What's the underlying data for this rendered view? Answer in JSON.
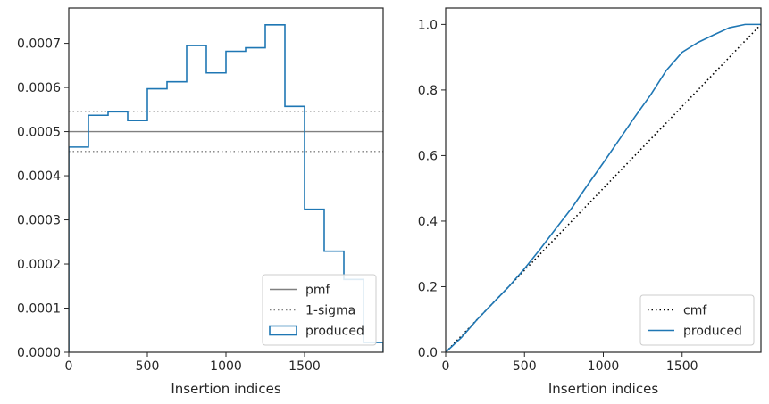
{
  "chart_data": [
    {
      "type": "step-histogram",
      "xlabel": "Insertion indices",
      "ylabel": "",
      "xlim": [
        0,
        2000
      ],
      "ylim": [
        0,
        0.00078
      ],
      "xticks": [
        0,
        500,
        1000,
        1500
      ],
      "yticks": [
        0,
        0.0001,
        0.0002,
        0.0003,
        0.0004,
        0.0005,
        0.0006,
        0.0007
      ],
      "xtick_labels": [
        "0",
        "500",
        "1000",
        "1500"
      ],
      "ytick_labels": [
        "0.0000",
        "0.0001",
        "0.0002",
        "0.0003",
        "0.0004",
        "0.0005",
        "0.0006",
        "0.0007"
      ],
      "bin_edges": [
        0,
        125,
        250,
        375,
        500,
        625,
        750,
        875,
        1000,
        1125,
        1250,
        1375,
        1500,
        1625,
        1750,
        1875,
        2000
      ],
      "series": [
        {
          "name": "produced",
          "color": "#1f77b4",
          "style": "step",
          "values": [
            0.000465,
            0.000537,
            0.000545,
            0.000525,
            0.000597,
            0.000613,
            0.000695,
            0.000633,
            0.000682,
            0.00069,
            0.000742,
            0.000557,
            0.000324,
            0.000229,
            0.000165,
            2.2e-05
          ]
        }
      ],
      "hlines": [
        {
          "name": "pmf",
          "y": 0.0005,
          "color": "#808080",
          "style": "solid"
        },
        {
          "name": "1-sigma",
          "y": 0.000546,
          "color": "#808080",
          "style": "dotted"
        },
        {
          "name": "1-sigma-lower",
          "y": 0.000455,
          "color": "#808080",
          "style": "dotted"
        }
      ],
      "legend": {
        "position": "lower-right",
        "entries": [
          "pmf",
          "1-sigma",
          "produced"
        ]
      },
      "grid": false
    },
    {
      "type": "line",
      "xlabel": "Insertion indices",
      "ylabel": "",
      "xlim": [
        0,
        2000
      ],
      "ylim": [
        0,
        1.05
      ],
      "xticks": [
        0,
        500,
        1000,
        1500
      ],
      "yticks": [
        0,
        0.2,
        0.4,
        0.6,
        0.8,
        1.0
      ],
      "xtick_labels": [
        "0",
        "500",
        "1000",
        "1500"
      ],
      "ytick_labels": [
        "0.0",
        "0.2",
        "0.4",
        "0.6",
        "0.8",
        "1.0"
      ],
      "series": [
        {
          "name": "cmf",
          "color": "#000000",
          "style": "dotted",
          "x": [
            0,
            2000
          ],
          "y": [
            0,
            1.0
          ]
        },
        {
          "name": "produced",
          "color": "#1f77b4",
          "style": "solid",
          "x": [
            0,
            100,
            200,
            300,
            400,
            500,
            600,
            700,
            800,
            900,
            1000,
            1100,
            1200,
            1300,
            1400,
            1500,
            1600,
            1700,
            1800,
            1900,
            2000
          ],
          "y": [
            0,
            0.045,
            0.1,
            0.15,
            0.2,
            0.255,
            0.315,
            0.378,
            0.44,
            0.51,
            0.578,
            0.648,
            0.718,
            0.785,
            0.86,
            0.915,
            0.945,
            0.968,
            0.99,
            1.0,
            1.0
          ]
        }
      ],
      "legend": {
        "position": "lower-right",
        "entries": [
          "cmf",
          "produced"
        ]
      },
      "grid": false
    }
  ]
}
